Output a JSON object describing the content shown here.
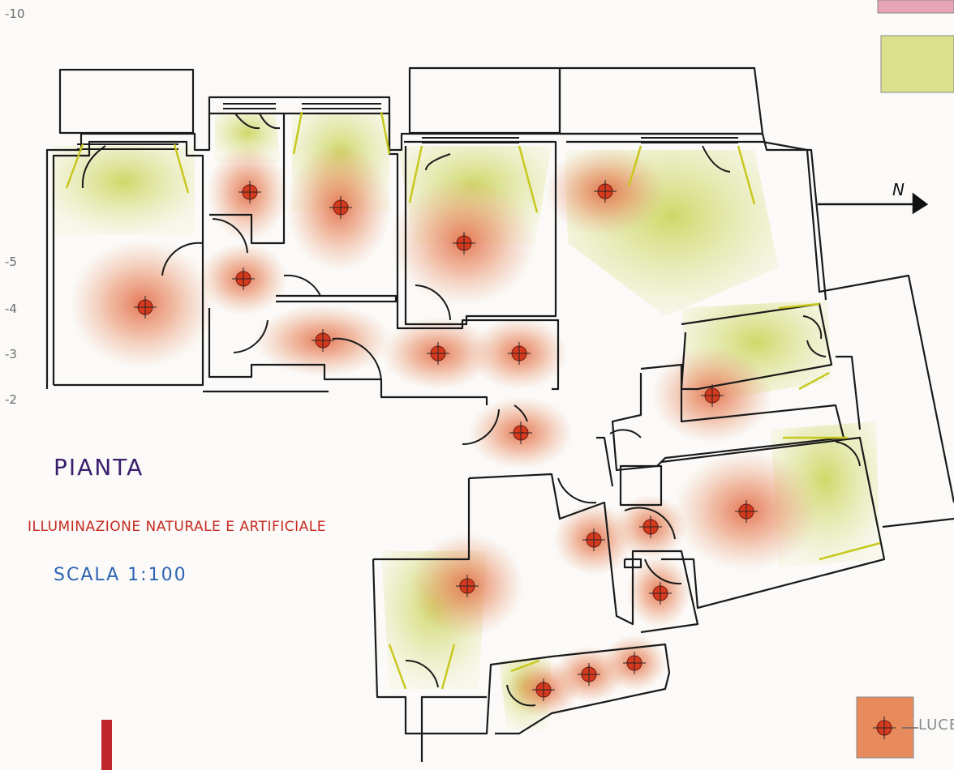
{
  "drawing": {
    "title": "PIANTA",
    "subtitle": "ILLUMINAZIONE NATURALE E ARTIFICIALE",
    "scale": "SCALA 1:100"
  },
  "north_arrow": {
    "label": "N"
  },
  "margin_ticks": [
    "-10",
    "-5",
    "-4",
    "-3",
    "-2"
  ],
  "legend": {
    "artificial_label": "LUCE"
  },
  "colors": {
    "natural_light": "#cfd86a",
    "artificial_light": "#e8865c",
    "lamp": "#d63a1e",
    "walls": "#1a1a1a",
    "title_text": "#3b1e6e",
    "subtitle_text": "#c62a20",
    "scale_text": "#2d63b3",
    "red_marker": "#c0262c"
  },
  "lamps_count": 20
}
